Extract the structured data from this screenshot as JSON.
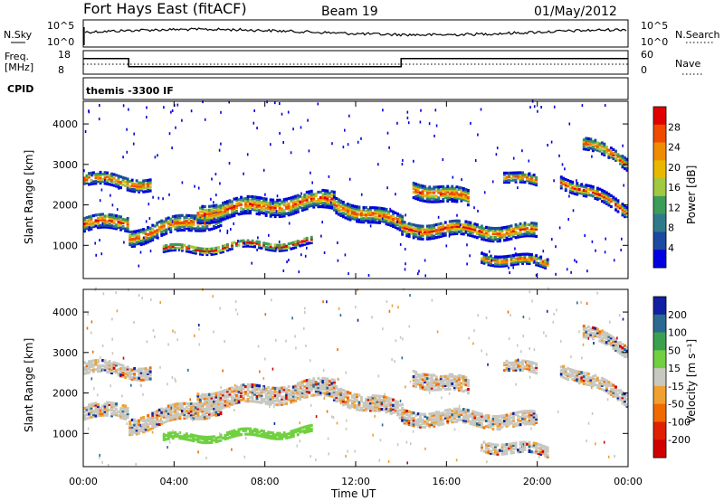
{
  "header": {
    "site": "Fort Hays East (fitACF)",
    "beam": "Beam 19",
    "date": "01/May/2012"
  },
  "top_panel": {
    "nsky_label": "N.Sky",
    "nsky_ticks": [
      "10^5",
      "10^0"
    ],
    "nsearch_label": "N.Search",
    "nsearch_ticks": [
      "10^5",
      "10^0"
    ],
    "freq_label_1": "Freq.",
    "freq_label_2": "[MHz]",
    "freq_ticks": [
      "18",
      "8"
    ],
    "nave_label": "Nave",
    "nave_ticks": [
      "60",
      "0"
    ],
    "cpid_label": "CPID",
    "cpid_value": "themis -3300 IF",
    "freq_steps": [
      {
        "t0": 0,
        "t1": 2,
        "level": 0.55
      },
      {
        "t0": 2,
        "t1": 14,
        "level": 0.2
      },
      {
        "t0": 14,
        "t1": 24,
        "level": 0.55
      }
    ]
  },
  "chart_data": [
    {
      "type": "heatmap",
      "name": "power-panel",
      "ylabel": "Slant Range [km]",
      "yticks": [
        "4000",
        "3000",
        "2000",
        "1000"
      ],
      "ytick_values": [
        4000,
        3000,
        2000,
        1000
      ],
      "ylim": [
        180,
        4560
      ],
      "xlim": [
        0,
        24
      ],
      "colorbar_label": "Power [dB]",
      "colorbar_ticks": [
        "28",
        "24",
        "20",
        "16",
        "12",
        "8",
        "4"
      ],
      "colorbar_colors": [
        "#e00000",
        "#f04a00",
        "#f08c00",
        "#e8b800",
        "#a0c840",
        "#3c9c5a",
        "#2f7a8a",
        "#1c4aa0",
        "#0000e0"
      ]
    },
    {
      "type": "heatmap",
      "name": "velocity-panel",
      "ylabel": "Slant Range [km]",
      "yticks": [
        "4000",
        "3000",
        "2000",
        "1000"
      ],
      "ytick_values": [
        4000,
        3000,
        2000,
        1000
      ],
      "ylim": [
        180,
        4560
      ],
      "xlim": [
        0,
        24
      ],
      "colorbar_label": "Velocity [m s⁻¹]",
      "colorbar_ticks": [
        "200",
        "100",
        "50",
        "15",
        "-15",
        "-50",
        "-100",
        "-200"
      ],
      "colorbar_colors": [
        "#1020a0",
        "#2a6a90",
        "#3aa050",
        "#70d040",
        "#c8c8c0",
        "#f0a030",
        "#f06a00",
        "#e02000",
        "#d00000"
      ]
    }
  ],
  "x_axis": {
    "ticks": [
      "00:00",
      "04:00",
      "08:00",
      "12:00",
      "16:00",
      "20:00",
      "00:00"
    ],
    "tick_values": [
      0,
      4,
      8,
      12,
      16,
      20,
      24
    ],
    "label": "Time UT"
  }
}
